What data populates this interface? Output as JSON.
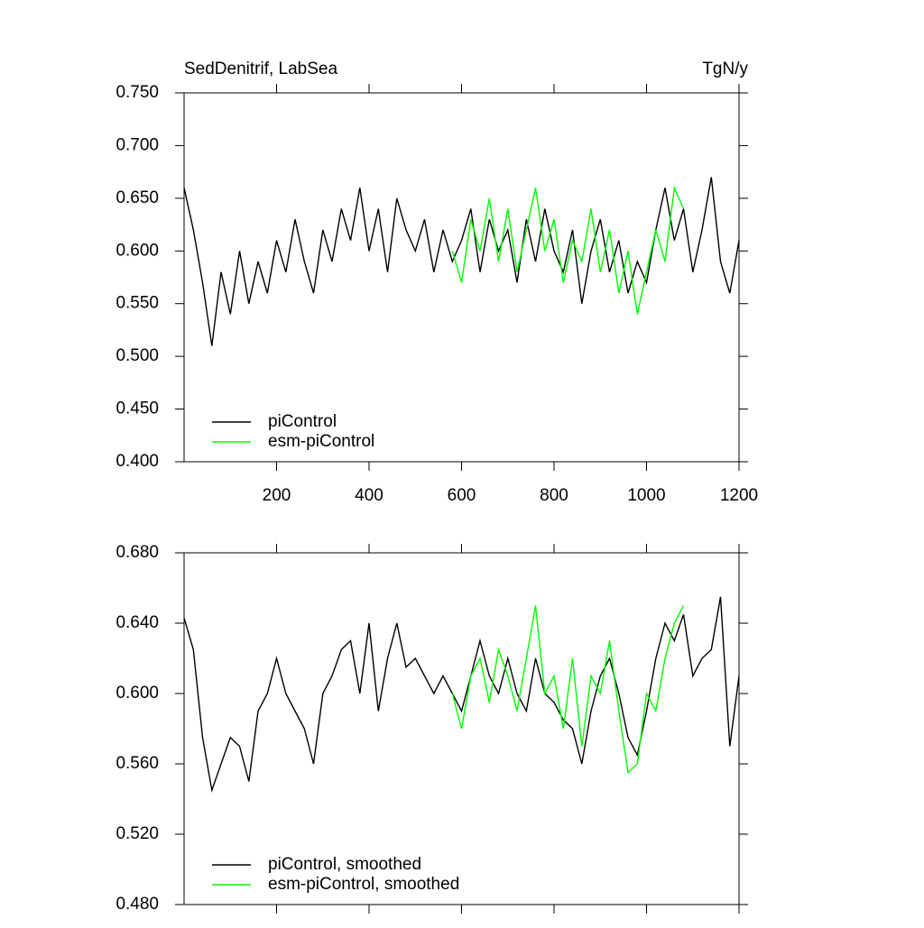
{
  "chart_data": [
    {
      "type": "line",
      "title": "SedDenitrif, LabSea",
      "units": "TgN/y",
      "x": [
        0,
        20,
        40,
        60,
        80,
        100,
        120,
        140,
        160,
        180,
        200,
        220,
        240,
        260,
        280,
        300,
        320,
        340,
        360,
        380,
        400,
        420,
        440,
        460,
        480,
        500,
        520,
        540,
        560,
        580,
        600,
        620,
        640,
        660,
        680,
        700,
        720,
        740,
        760,
        780,
        800,
        820,
        840,
        860,
        880,
        900,
        920,
        940,
        960,
        980,
        1000,
        1020,
        1040,
        1060,
        1080,
        1100,
        1120,
        1140,
        1160,
        1180,
        1200
      ],
      "series": [
        {
          "name": "piControl",
          "color": "#000000",
          "values": [
            0.66,
            0.62,
            0.57,
            0.51,
            0.58,
            0.54,
            0.6,
            0.55,
            0.59,
            0.56,
            0.61,
            0.58,
            0.63,
            0.59,
            0.56,
            0.62,
            0.59,
            0.64,
            0.61,
            0.66,
            0.6,
            0.64,
            0.58,
            0.65,
            0.62,
            0.6,
            0.63,
            0.58,
            0.62,
            0.59,
            0.61,
            0.64,
            0.58,
            0.63,
            0.6,
            0.62,
            0.57,
            0.63,
            0.59,
            0.64,
            0.6,
            0.58,
            0.62,
            0.55,
            0.6,
            0.63,
            0.58,
            0.61,
            0.56,
            0.59,
            0.57,
            0.62,
            0.66,
            0.61,
            0.64,
            0.58,
            0.62,
            0.67,
            0.59,
            0.56,
            0.61
          ]
        },
        {
          "name": "esm-piControl",
          "color": "#00ff00",
          "values": [
            null,
            null,
            null,
            null,
            null,
            null,
            null,
            null,
            null,
            null,
            null,
            null,
            null,
            null,
            null,
            null,
            null,
            null,
            null,
            null,
            null,
            null,
            null,
            null,
            null,
            null,
            null,
            null,
            null,
            0.6,
            0.57,
            0.63,
            0.6,
            0.65,
            0.59,
            0.64,
            0.58,
            0.62,
            0.66,
            0.6,
            0.63,
            0.57,
            0.61,
            0.59,
            0.64,
            0.58,
            0.62,
            0.56,
            0.6,
            0.54,
            0.58,
            0.62,
            0.59,
            0.66,
            0.64,
            null,
            null,
            null,
            null,
            null,
            null
          ]
        }
      ],
      "xlim": [
        0,
        1200
      ],
      "xticks": [
        200,
        400,
        600,
        800,
        1000,
        1200
      ],
      "xticklabels": true,
      "ylim": [
        0.4,
        0.75
      ],
      "yticks": [
        {
          "value": 0.4,
          "label": "0.400"
        },
        {
          "value": 0.45,
          "label": "0.450"
        },
        {
          "value": 0.5,
          "label": "0.500"
        },
        {
          "value": 0.55,
          "label": "0.550"
        },
        {
          "value": 0.6,
          "label": "0.600"
        },
        {
          "value": 0.65,
          "label": "0.650"
        },
        {
          "value": 0.7,
          "label": "0.700"
        },
        {
          "value": 0.75,
          "label": "0.750"
        }
      ],
      "legend": "lower left"
    },
    {
      "type": "line",
      "x": [
        0,
        20,
        40,
        60,
        80,
        100,
        120,
        140,
        160,
        180,
        200,
        220,
        240,
        260,
        280,
        300,
        320,
        340,
        360,
        380,
        400,
        420,
        440,
        460,
        480,
        500,
        520,
        540,
        560,
        580,
        600,
        620,
        640,
        660,
        680,
        700,
        720,
        740,
        760,
        780,
        800,
        820,
        840,
        860,
        880,
        900,
        920,
        940,
        960,
        980,
        1000,
        1020,
        1040,
        1060,
        1080,
        1100,
        1120,
        1140,
        1160,
        1180,
        1200
      ],
      "series": [
        {
          "name": "piControl, smoothed",
          "color": "#000000",
          "values": [
            0.643,
            0.625,
            0.575,
            0.545,
            0.56,
            0.575,
            0.57,
            0.55,
            0.59,
            0.6,
            0.62,
            0.6,
            0.59,
            0.58,
            0.56,
            0.6,
            0.61,
            0.625,
            0.63,
            0.6,
            0.64,
            0.59,
            0.62,
            0.64,
            0.615,
            0.62,
            0.61,
            0.6,
            0.61,
            0.6,
            0.59,
            0.61,
            0.63,
            0.61,
            0.6,
            0.62,
            0.6,
            0.59,
            0.62,
            0.6,
            0.595,
            0.585,
            0.58,
            0.56,
            0.59,
            0.61,
            0.62,
            0.6,
            0.575,
            0.565,
            0.59,
            0.62,
            0.64,
            0.63,
            0.645,
            0.61,
            0.62,
            0.625,
            0.655,
            0.57,
            0.61
          ]
        },
        {
          "name": "esm-piControl, smoothed",
          "color": "#00ff00",
          "values": [
            null,
            null,
            null,
            null,
            null,
            null,
            null,
            null,
            null,
            null,
            null,
            null,
            null,
            null,
            null,
            null,
            null,
            null,
            null,
            null,
            null,
            null,
            null,
            null,
            null,
            null,
            null,
            null,
            null,
            0.6,
            0.58,
            0.61,
            0.62,
            0.595,
            0.625,
            0.61,
            0.59,
            0.62,
            0.65,
            0.6,
            0.61,
            0.58,
            0.62,
            0.57,
            0.61,
            0.6,
            0.63,
            0.59,
            0.555,
            0.56,
            0.6,
            0.59,
            0.62,
            0.64,
            0.65,
            null,
            null,
            null,
            null,
            null,
            null
          ]
        }
      ],
      "xlim": [
        0,
        1200
      ],
      "xticks": [
        200,
        400,
        600,
        800,
        1000,
        1200
      ],
      "xticklabels": false,
      "ylim": [
        0.48,
        0.68
      ],
      "yticks": [
        {
          "value": 0.48,
          "label": "0.480"
        },
        {
          "value": 0.52,
          "label": "0.520"
        },
        {
          "value": 0.56,
          "label": "0.560"
        },
        {
          "value": 0.6,
          "label": "0.600"
        },
        {
          "value": 0.64,
          "label": "0.640"
        },
        {
          "value": 0.68,
          "label": "0.680"
        }
      ],
      "legend": "lower left"
    }
  ]
}
